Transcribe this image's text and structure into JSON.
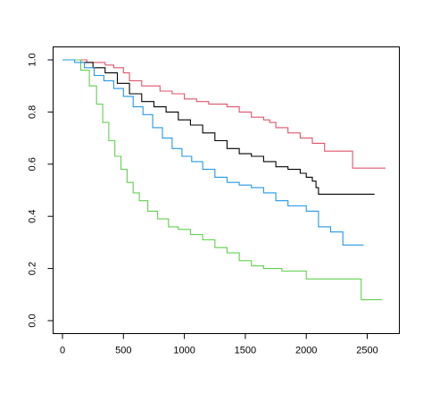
{
  "chart_data": {
    "type": "line",
    "step": true,
    "title": "",
    "xlabel": "",
    "ylabel": "",
    "xlim": [
      0,
      2650
    ],
    "ylim": [
      0,
      1.0
    ],
    "x_ticks": [
      0,
      500,
      1000,
      1500,
      2000,
      2500
    ],
    "y_ticks": [
      0.0,
      0.2,
      0.4,
      0.6,
      0.8,
      1.0
    ],
    "y_tick_labels": [
      "0.0",
      "0.2",
      "0.4",
      "0.6",
      "0.8",
      "1.0"
    ],
    "grid": false,
    "legend": "none",
    "series": [
      {
        "color": "#df536b",
        "x": [
          0,
          200,
          350,
          420,
          500,
          550,
          650,
          800,
          900,
          1000,
          1100,
          1200,
          1350,
          1450,
          1550,
          1650,
          1700,
          1750,
          1850,
          1950,
          2050,
          2150,
          2380,
          2650
        ],
        "y": [
          1.0,
          0.99,
          0.98,
          0.97,
          0.95,
          0.92,
          0.9,
          0.88,
          0.87,
          0.85,
          0.84,
          0.83,
          0.82,
          0.8,
          0.78,
          0.77,
          0.76,
          0.74,
          0.72,
          0.7,
          0.68,
          0.65,
          0.585,
          0.585
        ]
      },
      {
        "color": "#000000",
        "x": [
          0,
          150,
          250,
          350,
          450,
          550,
          650,
          750,
          850,
          950,
          1050,
          1150,
          1250,
          1350,
          1450,
          1550,
          1650,
          1750,
          1850,
          1950,
          2000,
          2050,
          2080,
          2100,
          2560
        ],
        "y": [
          1.0,
          0.99,
          0.97,
          0.95,
          0.91,
          0.87,
          0.84,
          0.82,
          0.8,
          0.77,
          0.75,
          0.72,
          0.69,
          0.66,
          0.64,
          0.63,
          0.61,
          0.59,
          0.58,
          0.565,
          0.55,
          0.535,
          0.51,
          0.485,
          0.485
        ]
      },
      {
        "color": "#61d04f",
        "x": [
          0,
          150,
          220,
          280,
          330,
          380,
          430,
          480,
          530,
          580,
          630,
          700,
          780,
          870,
          950,
          1050,
          1150,
          1250,
          1350,
          1450,
          1550,
          1650,
          1800,
          2000,
          2300,
          2450,
          2620
        ],
        "y": [
          1.0,
          0.96,
          0.9,
          0.83,
          0.76,
          0.69,
          0.63,
          0.58,
          0.53,
          0.49,
          0.46,
          0.42,
          0.39,
          0.36,
          0.35,
          0.33,
          0.31,
          0.28,
          0.26,
          0.23,
          0.21,
          0.2,
          0.19,
          0.16,
          0.16,
          0.08,
          0.08
        ]
      },
      {
        "color": "#2297e6",
        "x": [
          0,
          100,
          180,
          260,
          340,
          420,
          500,
          580,
          660,
          740,
          820,
          900,
          980,
          1060,
          1150,
          1250,
          1350,
          1450,
          1550,
          1650,
          1750,
          1850,
          2000,
          2100,
          2200,
          2300,
          2470
        ],
        "y": [
          1.0,
          0.99,
          0.97,
          0.94,
          0.92,
          0.89,
          0.86,
          0.82,
          0.79,
          0.74,
          0.7,
          0.66,
          0.63,
          0.61,
          0.58,
          0.55,
          0.53,
          0.52,
          0.51,
          0.49,
          0.46,
          0.44,
          0.42,
          0.36,
          0.34,
          0.29,
          0.29
        ]
      }
    ]
  }
}
